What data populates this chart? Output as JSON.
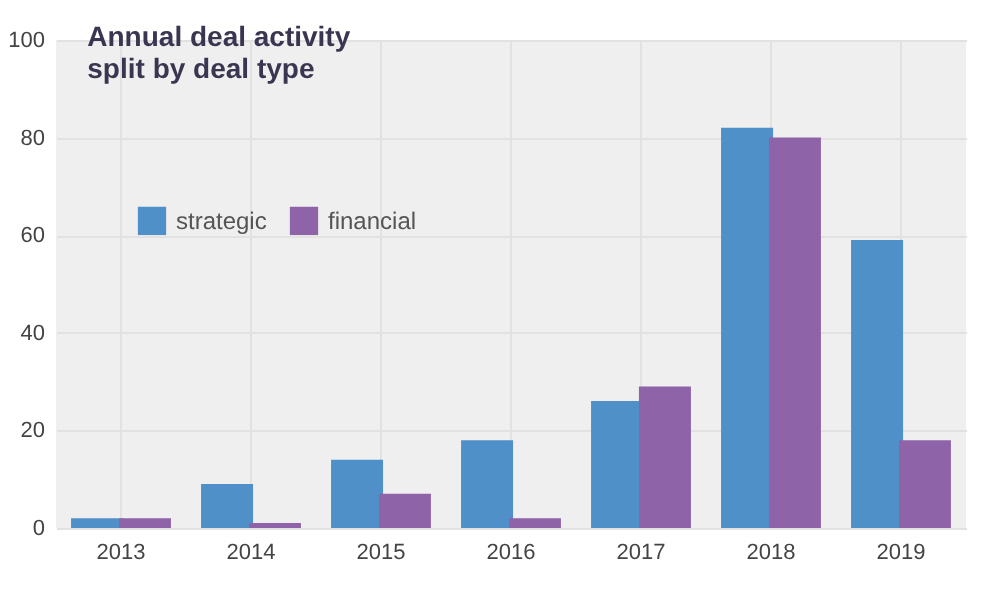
{
  "chart_data": {
    "type": "bar",
    "title": "Annual deal activity\nsplit by deal type",
    "categories": [
      "2013",
      "2014",
      "2015",
      "2016",
      "2017",
      "2018",
      "2019"
    ],
    "series": [
      {
        "name": "strategic",
        "color": "#4f90c8",
        "values": [
          2,
          9,
          14,
          18,
          26,
          82,
          59
        ]
      },
      {
        "name": "financial",
        "color": "#8e63a8",
        "values": [
          2,
          1,
          7,
          2,
          29,
          80,
          18
        ]
      }
    ],
    "ylim": [
      0,
      100
    ],
    "yticks": [
      0,
      20,
      40,
      60,
      80,
      100
    ],
    "grid": true,
    "legend": "top left"
  }
}
